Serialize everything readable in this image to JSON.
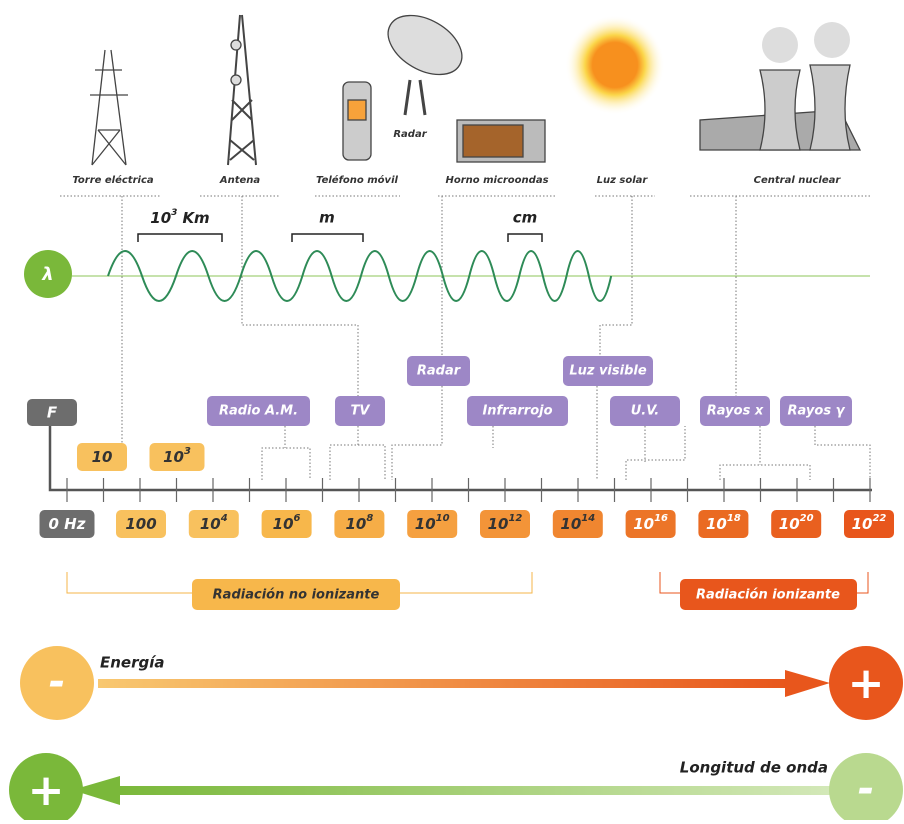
{
  "devices": [
    "Torre eléctrica",
    "Antena",
    "Teléfono móvil",
    "Radar",
    "Horno microondas",
    "Luz solar",
    "Central nuclear"
  ],
  "wavelength": {
    "symbol": "λ",
    "labels": [
      {
        "base": "10",
        "exp": "3",
        "unit": "Km"
      },
      {
        "unit": "m"
      },
      {
        "unit": "cm"
      }
    ]
  },
  "frequency": {
    "symbol": "F",
    "upper": [
      {
        "base": "10"
      },
      {
        "base": "10",
        "exp": "3"
      }
    ],
    "lower": [
      {
        "base": "0 Hz"
      },
      {
        "base": "100"
      },
      {
        "base": "10",
        "exp": "4"
      },
      {
        "base": "10",
        "exp": "6"
      },
      {
        "base": "10",
        "exp": "8"
      },
      {
        "base": "10",
        "exp": "10"
      },
      {
        "base": "10",
        "exp": "12"
      },
      {
        "base": "10",
        "exp": "14"
      },
      {
        "base": "10",
        "exp": "16"
      },
      {
        "base": "10",
        "exp": "18"
      },
      {
        "base": "10",
        "exp": "20"
      },
      {
        "base": "10",
        "exp": "22"
      }
    ]
  },
  "bands": [
    "Radio A.M.",
    "TV",
    "Radar",
    "Infrarrojo",
    "Luz visible",
    "U.V.",
    "Rayos x",
    "Rayos γ"
  ],
  "radiation": {
    "non_ionizing": "Radiación no ionizante",
    "ionizing": "Radiación ionizante"
  },
  "energy": {
    "label": "Energía",
    "low": "-",
    "high": "+"
  },
  "wave_length": {
    "label": "Longitud de onda",
    "long": "+",
    "short": "-"
  }
}
